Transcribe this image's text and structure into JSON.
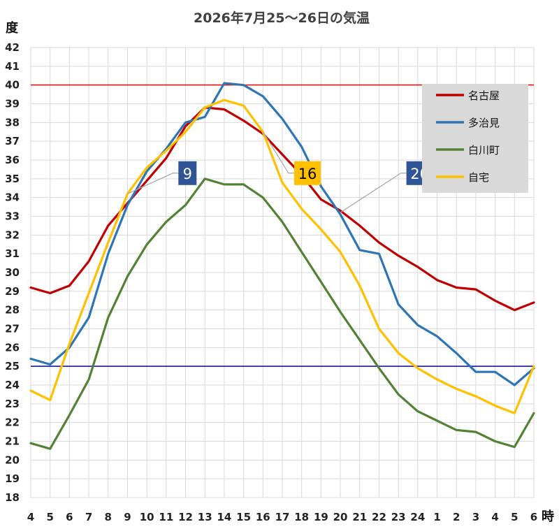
{
  "chart_data": {
    "type": "line",
    "title": "2026年7月25～26日の気温",
    "ylabel": "度",
    "xlabel": "時",
    "ylim": [
      18,
      42
    ],
    "grid": true,
    "legend_position": "top-right",
    "x": [
      "4",
      "5",
      "6",
      "7",
      "8",
      "9",
      "10",
      "11",
      "12",
      "13",
      "14",
      "15",
      "16",
      "17",
      "18",
      "19",
      "20",
      "21",
      "22",
      "23",
      "24",
      "1",
      "2",
      "3",
      "4",
      "5",
      "6"
    ],
    "reference_lines": [
      {
        "y": 40,
        "color": "#ff0000"
      },
      {
        "y": 25,
        "color": "#0000cc"
      }
    ],
    "series": [
      {
        "name": "名古屋",
        "color": "#c00000",
        "values": [
          29.2,
          28.9,
          29.3,
          30.6,
          32.5,
          33.7,
          34.9,
          36.1,
          37.8,
          38.8,
          38.7,
          38.1,
          37.4,
          36.3,
          35.2,
          33.9,
          33.3,
          32.5,
          31.6,
          30.9,
          30.3,
          29.6,
          29.2,
          29.1,
          28.5,
          28.0,
          28.4
        ]
      },
      {
        "name": "多治見",
        "color": "#2e75b6",
        "values": [
          25.4,
          25.1,
          26.0,
          27.6,
          31.0,
          33.6,
          35.4,
          36.6,
          38.0,
          38.3,
          40.1,
          40.0,
          39.4,
          38.2,
          36.7,
          34.6,
          33.1,
          31.2,
          31.0,
          28.3,
          27.2,
          26.6,
          25.7,
          24.7,
          24.7,
          24.0,
          24.9
        ]
      },
      {
        "name": "白川町",
        "color": "#548235",
        "values": [
          20.9,
          20.6,
          22.4,
          24.3,
          27.6,
          29.8,
          31.5,
          32.7,
          33.6,
          35.0,
          34.7,
          34.7,
          34.0,
          32.7,
          31.1,
          29.5,
          27.9,
          26.4,
          24.9,
          23.5,
          22.6,
          22.1,
          21.6,
          21.5,
          21.0,
          20.7,
          22.5
        ]
      },
      {
        "name": "自宅",
        "color": "#ffc000",
        "values": [
          23.7,
          23.2,
          26.2,
          28.9,
          31.6,
          34.2,
          35.6,
          36.5,
          37.5,
          38.8,
          39.2,
          38.9,
          37.5,
          34.8,
          33.4,
          32.3,
          31.1,
          29.3,
          27.0,
          25.7,
          24.9,
          24.3,
          23.8,
          23.4,
          22.9,
          22.5,
          25.0
        ]
      }
    ],
    "annotations": [
      {
        "text": "9",
        "x_index": 5,
        "y": 34.2,
        "box_x": 8.1,
        "box_y": 35.3,
        "bg": "#2f5597",
        "fg": "#ffffff"
      },
      {
        "text": "16",
        "x_index": 12,
        "y": 37.5,
        "box_x": 14.3,
        "box_y": 35.3,
        "bg": "#ffc000",
        "fg": "#000000"
      },
      {
        "text": "20",
        "x_index": 16,
        "y": 33.2,
        "box_x": 20.1,
        "box_y": 35.3,
        "bg": "#2f5597",
        "fg": "#ffffff"
      }
    ]
  }
}
